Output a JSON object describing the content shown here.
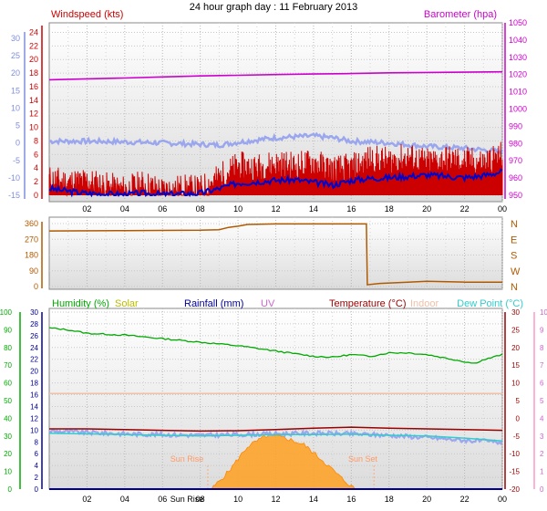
{
  "title": "24 hour graph day : 11 February 2013",
  "colors": {
    "windspeed": "#cc0000",
    "windspeed_avg": "#0000cc",
    "barometer": "#cc00cc",
    "temp_light": "#9aa6ee",
    "direction": "#b05a00",
    "humidity": "#00aa00",
    "solar": "#cccc00",
    "rainfall": "#000099",
    "uv": "#cc66cc",
    "temperature": "#990000",
    "indoor": "#f0c0a8",
    "dewpoint": "#33cccc",
    "sun": "#ffa020",
    "panel_bg": "#efefef"
  },
  "chart_data": [
    {
      "type": "line",
      "panel": "wind-barometer",
      "left_axis_label": "Windspeed (kts)",
      "right_axis_label": "Barometer (hpa)",
      "windspeed_ticks": [
        0,
        2,
        4,
        6,
        8,
        10,
        12,
        14,
        16,
        18,
        20,
        22,
        24
      ],
      "temp_ticks": [
        -15,
        -10,
        -5,
        0,
        5,
        10,
        15,
        20,
        25,
        30
      ],
      "baro_ticks": [
        950,
        960,
        970,
        980,
        990,
        1000,
        1010,
        1020,
        1030,
        1040,
        1050
      ],
      "x_ticks": [
        "02",
        "04",
        "06",
        "08",
        "10",
        "12",
        "14",
        "16",
        "18",
        "20",
        "22",
        "00"
      ],
      "series": [
        {
          "role": "gust",
          "x": [
            0,
            1,
            2,
            3,
            4,
            5,
            6,
            7,
            8,
            9,
            10,
            11,
            12,
            13,
            14,
            15,
            16,
            17,
            18,
            19,
            20,
            21,
            22,
            23,
            24
          ],
          "values": [
            2.5,
            2.0,
            2.2,
            1.5,
            1.0,
            1.8,
            0.8,
            1.2,
            1.0,
            2.8,
            4.5,
            4.2,
            4.8,
            4.5,
            5.0,
            4.0,
            4.2,
            5.5,
            5.2,
            5.8,
            5.0,
            5.5,
            5.2,
            5.0,
            6.0
          ]
        },
        {
          "role": "average",
          "x": [
            0,
            1,
            2,
            3,
            4,
            5,
            6,
            7,
            8,
            9,
            10,
            11,
            12,
            13,
            14,
            15,
            16,
            17,
            18,
            19,
            20,
            21,
            22,
            23,
            24
          ],
          "values": [
            1.0,
            0.6,
            0.3,
            0.2,
            0.1,
            0.3,
            0.1,
            0.2,
            0.3,
            1.0,
            1.8,
            2.0,
            2.2,
            2.3,
            1.9,
            1.5,
            2.2,
            2.5,
            2.6,
            2.8,
            3.0,
            2.8,
            2.6,
            2.9,
            3.5
          ]
        },
        {
          "role": "barometer",
          "x": [
            0,
            2,
            4,
            6,
            8,
            10,
            12,
            14,
            16,
            18,
            20,
            22,
            24
          ],
          "values": [
            1017,
            1017.5,
            1018,
            1018.6,
            1019.2,
            1019.6,
            1020,
            1020.3,
            1020.6,
            1021,
            1021.2,
            1021.4,
            1021.6
          ]
        },
        {
          "role": "temperature-light",
          "x": [
            0,
            2,
            4,
            6,
            8,
            9,
            10,
            12,
            14,
            15,
            16,
            18,
            20,
            22,
            23,
            24
          ],
          "values": [
            0.5,
            0.5,
            0.3,
            0.0,
            -0.4,
            -0.6,
            0.2,
            1.5,
            2.0,
            1.5,
            0.5,
            0.0,
            -1.0,
            -1.5,
            -2.0,
            -2.5
          ]
        }
      ]
    },
    {
      "type": "line",
      "panel": "wind-direction",
      "left_ticks": [
        0,
        90,
        180,
        270,
        360
      ],
      "right_labels": [
        "N",
        "W",
        "S",
        "E",
        "N"
      ],
      "series": [
        {
          "role": "direction",
          "x": [
            0,
            4,
            8,
            9,
            9.5,
            10,
            10.5,
            12,
            16.8,
            16.85,
            17.5,
            19,
            20,
            22,
            24
          ],
          "values": [
            318,
            320,
            322,
            325,
            338,
            345,
            355,
            358,
            358,
            10,
            18,
            25,
            30,
            25,
            25
          ]
        }
      ]
    },
    {
      "type": "line",
      "panel": "temperature-humidity",
      "labels": {
        "humidity": "Humidity (%)",
        "solar": "Solar",
        "rainfall": "Rainfall (mm)",
        "uv": "UV",
        "temperature": "Temperature (°C)",
        "indoor": "Indoor",
        "dewpoint": "Dew Point (°C)"
      },
      "humidity_ticks": [
        0,
        10,
        20,
        30,
        40,
        50,
        60,
        70,
        80,
        90,
        100
      ],
      "rain_ticks": [
        0,
        2,
        4,
        6,
        8,
        10,
        12,
        14,
        16,
        18,
        20,
        22,
        24,
        26,
        28,
        30
      ],
      "temp_ticks": [
        -20,
        -15,
        -10,
        -5,
        0,
        5,
        10,
        15,
        20,
        25,
        30
      ],
      "uv_ticks": [
        0,
        1,
        2,
        3,
        4,
        5,
        6,
        7,
        8,
        9,
        10
      ],
      "x_ticks": [
        "02",
        "04",
        "06",
        "08",
        "10",
        "12",
        "14",
        "16",
        "18",
        "20",
        "22",
        "00"
      ],
      "sun_rise_label": "Sun Rise",
      "sun_set_label": "Sun Set",
      "sun_x_label": "Sun Rise",
      "sun_rise_hour": 8.4,
      "sun_set_hour": 17.2,
      "series": [
        {
          "role": "humidity",
          "x": [
            0,
            1,
            2,
            4,
            6,
            8,
            10,
            12,
            14,
            15,
            16,
            17,
            18,
            19,
            20,
            21,
            22,
            22.5,
            23,
            24
          ],
          "values": [
            91,
            90,
            88,
            87,
            85,
            83,
            81,
            78,
            75,
            74.5,
            76,
            75,
            77,
            77,
            76,
            74,
            72,
            71,
            73,
            76
          ]
        },
        {
          "role": "indoor",
          "x": [
            0,
            24
          ],
          "values": [
            7.0,
            7.0
          ]
        },
        {
          "role": "temperature",
          "x": [
            0,
            2,
            4,
            6,
            8,
            10,
            12,
            14,
            16,
            18,
            20,
            22,
            24
          ],
          "values": [
            -3.0,
            -3.0,
            -3.2,
            -3.4,
            -3.6,
            -3.5,
            -3.2,
            -2.8,
            -2.5,
            -2.8,
            -3.0,
            -3.2,
            -3.4
          ]
        },
        {
          "role": "dewpoint",
          "x": [
            0,
            2,
            4,
            6,
            8,
            10,
            12,
            14,
            16,
            18,
            20,
            22,
            24
          ],
          "values": [
            -4.2,
            -4.4,
            -4.6,
            -4.8,
            -5.0,
            -4.8,
            -4.6,
            -4.6,
            -4.5,
            -4.8,
            -5.0,
            -5.6,
            -6.4
          ]
        },
        {
          "role": "temperature-light",
          "x": [
            0,
            2,
            4,
            6,
            8,
            10,
            12,
            14,
            16,
            18,
            20,
            22,
            24
          ],
          "values": [
            -3.6,
            -4.0,
            -4.4,
            -4.6,
            -4.8,
            -4.6,
            -4.4,
            -4.2,
            -4.4,
            -4.8,
            -5.4,
            -6.2,
            -6.8
          ]
        },
        {
          "role": "solar",
          "x": [
            8.6,
            9.5,
            10.5,
            11.5,
            12.5,
            13.5,
            14.5,
            15.5,
            16.2
          ],
          "values": [
            0.0,
            1.0,
            2.4,
            3.0,
            2.9,
            2.5,
            1.6,
            0.6,
            0.0
          ]
        },
        {
          "role": "rainfall",
          "x": [
            0,
            24
          ],
          "values": [
            0,
            0
          ]
        }
      ]
    }
  ]
}
